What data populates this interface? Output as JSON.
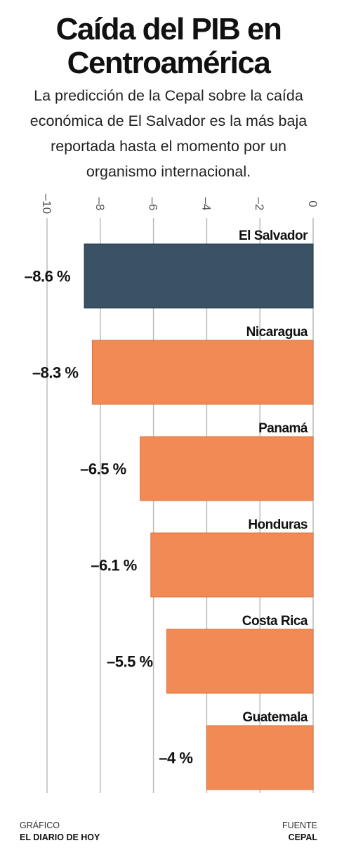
{
  "title": "Caída del PIB en Centroamérica",
  "subtitle": "La predicción de la Cepal sobre la caída económica de El Salvador es la más baja reportada hasta el momento por un organismo internacional.",
  "chart_data": {
    "type": "bar",
    "orientation": "horizontal",
    "categories": [
      "El Salvador",
      "Nicaragua",
      "Panamá",
      "Honduras",
      "Costa Rica",
      "Guatemala"
    ],
    "values": [
      -8.6,
      -8.3,
      -6.5,
      -6.1,
      -5.5,
      -4
    ],
    "data_labels": [
      "–8.6 %",
      "–8.3 %",
      "–6.5 %",
      "–6.1 %",
      "–5.5 %",
      "–4 %"
    ],
    "ticks": [
      -10,
      -8,
      -6,
      -4,
      -2,
      0
    ],
    "tick_labels": [
      "–10",
      "–8",
      "–6",
      "–4",
      "–2",
      "0"
    ],
    "xlim": [
      -10,
      0
    ],
    "grid": true,
    "highlight_category": "El Salvador",
    "colors": {
      "highlight": "#3a5266",
      "default": "#f28a55",
      "grid": "#bbbbbb"
    }
  },
  "footer": {
    "credit_label": "GRÁFICO",
    "credit_value": "EL DIARIO DE HOY",
    "source_label": "FUENTE",
    "source_value": "CEPAL"
  }
}
